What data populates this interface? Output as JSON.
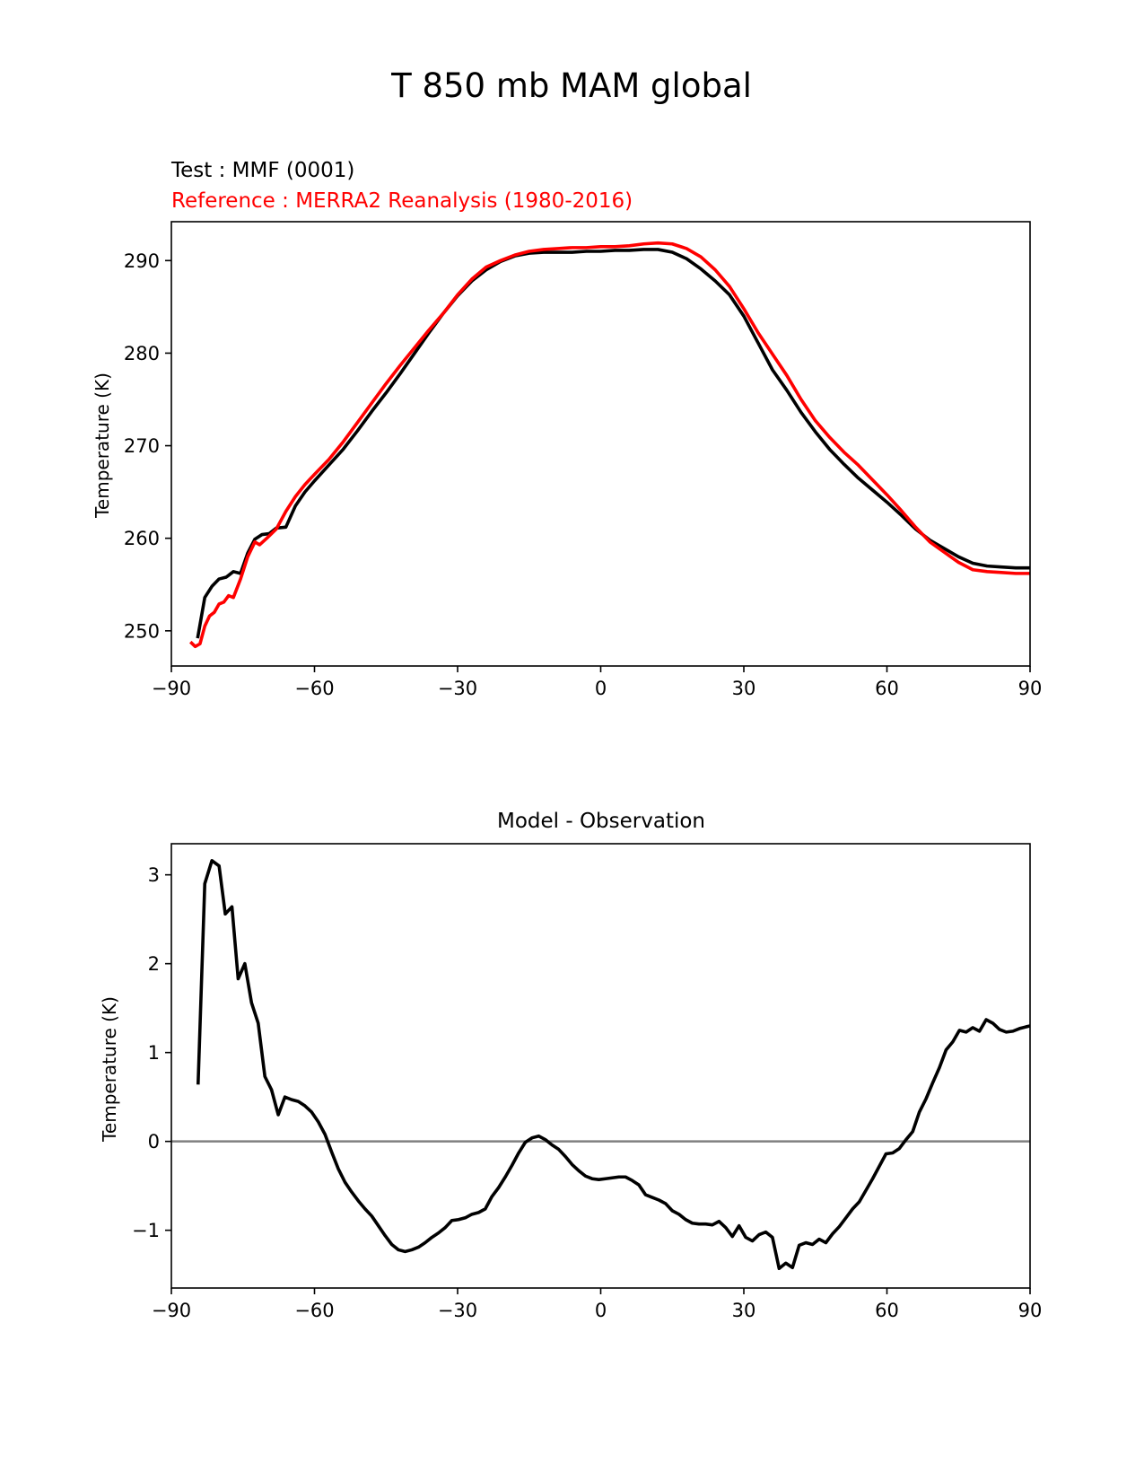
{
  "figure": {
    "title": "T 850 mb MAM global"
  },
  "chart_data": [
    {
      "type": "line",
      "test_label": "Test : MMF (0001)",
      "reference_label": "Reference : MERRA2 Reanalysis (1980-2016)",
      "xlabel": "",
      "ylabel": "Temperature (K)",
      "xlim": [
        -90,
        90
      ],
      "ylim": [
        246.2,
        294.2
      ],
      "xticks": [
        -90,
        -60,
        -30,
        0,
        30,
        60,
        90
      ],
      "xtick_labels": [
        "−90",
        "−60",
        "−30",
        "0",
        "30",
        "60",
        "90"
      ],
      "yticks": [
        250,
        260,
        270,
        280,
        290
      ],
      "ytick_labels": [
        "250",
        "260",
        "270",
        "280",
        "290"
      ],
      "grid": false,
      "series": [
        {
          "color": "#000000",
          "x": [
            -84.5,
            -83.0,
            -81.5,
            -80.0,
            -78.5,
            -77.0,
            -75.5,
            -74.0,
            -72.5,
            -71.0,
            -69.5,
            -68.0,
            -66.0,
            -64.0,
            -62.0,
            -60.0,
            -57.0,
            -54.0,
            -51.0,
            -48.0,
            -45.0,
            -42.0,
            -39.0,
            -36.0,
            -33.0,
            -30.0,
            -27.0,
            -24.0,
            -21.0,
            -18.0,
            -15.0,
            -12.0,
            -9.0,
            -6.0,
            -3.0,
            0.0,
            3.0,
            6.0,
            9.0,
            12.0,
            15.0,
            18.0,
            21.0,
            24.0,
            27.0,
            30.0,
            33.0,
            36.0,
            39.0,
            42.0,
            45.0,
            48.0,
            51.0,
            54.0,
            57.0,
            60.0,
            63.0,
            66.0,
            69.0,
            72.0,
            75.0,
            78.0,
            81.0,
            84.0,
            87.0,
            90.0
          ],
          "values": [
            249.2,
            253.6,
            254.8,
            255.6,
            255.8,
            256.4,
            256.2,
            258.4,
            259.9,
            260.4,
            260.5,
            261.1,
            261.2,
            263.5,
            265.0,
            266.2,
            267.9,
            269.6,
            271.6,
            273.7,
            275.7,
            277.8,
            280.0,
            282.2,
            284.3,
            286.2,
            287.8,
            289.0,
            289.9,
            290.5,
            290.8,
            290.9,
            290.9,
            290.9,
            291.0,
            291.0,
            291.1,
            291.1,
            291.2,
            291.2,
            290.9,
            290.2,
            289.1,
            287.8,
            286.3,
            284.0,
            281.1,
            278.2,
            276.0,
            273.6,
            271.5,
            269.6,
            268.0,
            266.5,
            265.2,
            263.9,
            262.5,
            261.0,
            259.8,
            258.9,
            258.0,
            257.3,
            257.0,
            256.9,
            256.8,
            256.8
          ]
        },
        {
          "color": "#ff0000",
          "x": [
            -86.0,
            -85.0,
            -84.0,
            -83.0,
            -82.0,
            -81.0,
            -80.0,
            -79.0,
            -78.0,
            -77.0,
            -75.5,
            -74.0,
            -72.5,
            -71.5,
            -70.0,
            -68.0,
            -66.0,
            -64.0,
            -62.0,
            -60.0,
            -57.0,
            -54.0,
            -51.0,
            -48.0,
            -45.0,
            -42.0,
            -39.0,
            -36.0,
            -33.0,
            -30.0,
            -27.0,
            -24.0,
            -21.0,
            -18.0,
            -15.0,
            -12.0,
            -9.0,
            -6.0,
            -3.0,
            0.0,
            3.0,
            6.0,
            9.0,
            12.0,
            15.0,
            18.0,
            21.0,
            24.0,
            27.0,
            30.0,
            33.0,
            36.0,
            39.0,
            42.0,
            45.0,
            48.0,
            51.0,
            54.0,
            57.0,
            60.0,
            63.0,
            66.0,
            69.0,
            72.0,
            75.0,
            78.0,
            81.0,
            84.0,
            87.0,
            90.0
          ],
          "values": [
            248.8,
            248.3,
            248.6,
            250.5,
            251.6,
            252.0,
            252.9,
            253.1,
            253.8,
            253.6,
            255.6,
            258.0,
            259.6,
            259.3,
            260.0,
            261.0,
            262.9,
            264.5,
            265.8,
            266.9,
            268.5,
            270.4,
            272.5,
            274.6,
            276.7,
            278.7,
            280.6,
            282.5,
            284.3,
            286.3,
            288.0,
            289.3,
            290.0,
            290.6,
            291.0,
            291.2,
            291.3,
            291.4,
            291.4,
            291.5,
            291.5,
            291.6,
            291.8,
            291.9,
            291.8,
            291.3,
            290.4,
            289.0,
            287.2,
            284.8,
            282.2,
            279.9,
            277.6,
            275.0,
            272.7,
            270.9,
            269.3,
            267.9,
            266.3,
            264.7,
            263.0,
            261.2,
            259.6,
            258.5,
            257.4,
            256.6,
            256.4,
            256.3,
            256.2,
            256.2
          ]
        }
      ]
    },
    {
      "type": "line",
      "title": "Model - Observation",
      "xlabel": "",
      "ylabel": "Temperature (K)",
      "xlim": [
        -90,
        90
      ],
      "ylim": [
        -1.65,
        3.35
      ],
      "xticks": [
        -90,
        -60,
        -30,
        0,
        30,
        60,
        90
      ],
      "xtick_labels": [
        "−90",
        "−60",
        "−30",
        "0",
        "30",
        "60",
        "90"
      ],
      "yticks": [
        -1,
        0,
        1,
        2,
        3
      ],
      "ytick_labels": [
        "−1",
        "0",
        "1",
        "2",
        "3"
      ],
      "grid": false,
      "zero_line_color": "#808080",
      "series": [
        {
          "color": "#000000",
          "x": [
            -84.4,
            -83.0,
            -81.5,
            -80.0,
            -78.7,
            -77.3,
            -76.0,
            -74.6,
            -73.2,
            -71.8,
            -70.4,
            -69.0,
            -67.6,
            -66.2,
            -64.8,
            -63.4,
            -62.0,
            -60.6,
            -59.2,
            -57.8,
            -56.4,
            -55.0,
            -53.6,
            -52.2,
            -50.8,
            -49.4,
            -48.0,
            -46.6,
            -45.2,
            -43.8,
            -42.4,
            -41.0,
            -39.6,
            -38.2,
            -36.8,
            -35.4,
            -34.0,
            -32.6,
            -31.2,
            -29.8,
            -28.4,
            -27.0,
            -25.6,
            -24.2,
            -22.8,
            -21.4,
            -20.0,
            -18.6,
            -17.2,
            -15.8,
            -14.4,
            -13.0,
            -11.6,
            -10.2,
            -8.8,
            -7.4,
            -6.0,
            -4.6,
            -3.2,
            -1.8,
            -0.4,
            1.0,
            2.4,
            3.8,
            5.2,
            6.6,
            8.0,
            9.4,
            10.8,
            12.2,
            13.6,
            15.0,
            16.4,
            17.8,
            19.2,
            20.6,
            22.0,
            23.4,
            24.8,
            26.2,
            27.6,
            29.0,
            30.4,
            31.8,
            33.2,
            34.6,
            36.0,
            37.4,
            38.8,
            40.2,
            41.6,
            43.0,
            44.4,
            45.8,
            47.2,
            48.6,
            50.0,
            51.4,
            52.8,
            54.2,
            55.6,
            57.0,
            58.4,
            59.8,
            61.2,
            62.6,
            64.0,
            65.4,
            66.8,
            68.2,
            69.6,
            71.0,
            72.4,
            73.8,
            75.2,
            76.6,
            78.0,
            79.4,
            80.8,
            82.2,
            83.6,
            85.0,
            86.4,
            87.8,
            89.2,
            90.0
          ],
          "values": [
            0.64,
            2.9,
            3.16,
            3.1,
            2.56,
            2.64,
            1.83,
            2.0,
            1.56,
            1.33,
            0.73,
            0.58,
            0.3,
            0.5,
            0.47,
            0.45,
            0.4,
            0.33,
            0.22,
            0.08,
            -0.12,
            -0.31,
            -0.46,
            -0.57,
            -0.67,
            -0.76,
            -0.84,
            -0.95,
            -1.06,
            -1.16,
            -1.22,
            -1.24,
            -1.22,
            -1.19,
            -1.14,
            -1.08,
            -1.03,
            -0.97,
            -0.89,
            -0.88,
            -0.86,
            -0.82,
            -0.8,
            -0.76,
            -0.62,
            -0.52,
            -0.4,
            -0.27,
            -0.13,
            -0.01,
            0.04,
            0.06,
            0.02,
            -0.04,
            -0.09,
            -0.17,
            -0.26,
            -0.33,
            -0.39,
            -0.42,
            -0.43,
            -0.42,
            -0.41,
            -0.4,
            -0.4,
            -0.44,
            -0.49,
            -0.6,
            -0.63,
            -0.66,
            -0.7,
            -0.78,
            -0.82,
            -0.88,
            -0.92,
            -0.93,
            -0.93,
            -0.94,
            -0.9,
            -0.97,
            -1.07,
            -0.95,
            -1.08,
            -1.12,
            -1.05,
            -1.02,
            -1.08,
            -1.43,
            -1.37,
            -1.42,
            -1.17,
            -1.14,
            -1.16,
            -1.1,
            -1.14,
            -1.04,
            -0.96,
            -0.86,
            -0.76,
            -0.68,
            -0.55,
            -0.42,
            -0.28,
            -0.14,
            -0.13,
            -0.08,
            0.02,
            0.11,
            0.33,
            0.48,
            0.66,
            0.83,
            1.03,
            1.12,
            1.25,
            1.23,
            1.28,
            1.24,
            1.37,
            1.33,
            1.26,
            1.23,
            1.24,
            1.27,
            1.29,
            1.3
          ]
        }
      ]
    }
  ]
}
